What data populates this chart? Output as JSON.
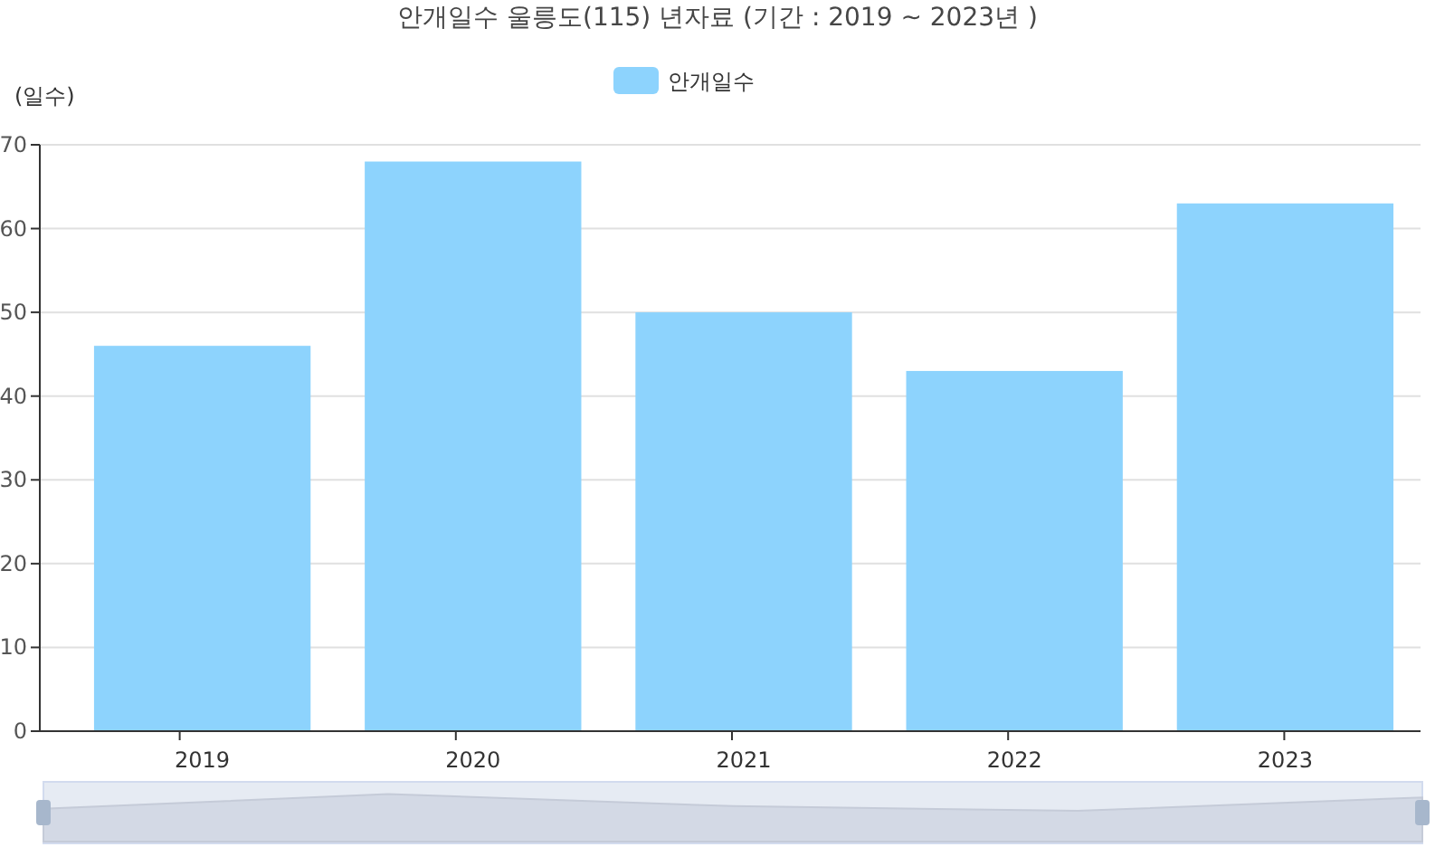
{
  "chart_data": {
    "type": "bar",
    "title": "안개일수 울릉도(115) 년자료 (기간 : 2019 ~ 2023년 )",
    "ylabel": "(일수)",
    "categories": [
      "2019",
      "2020",
      "2021",
      "2022",
      "2023"
    ],
    "series": [
      {
        "name": "안개일수",
        "color": "#8dd3fd",
        "values": [
          46,
          68,
          50,
          43,
          63
        ]
      }
    ],
    "ylim": [
      0,
      70
    ],
    "yticks": [
      0,
      10,
      20,
      30,
      40,
      50,
      60,
      70
    ],
    "grid": "y",
    "legend": "top"
  }
}
